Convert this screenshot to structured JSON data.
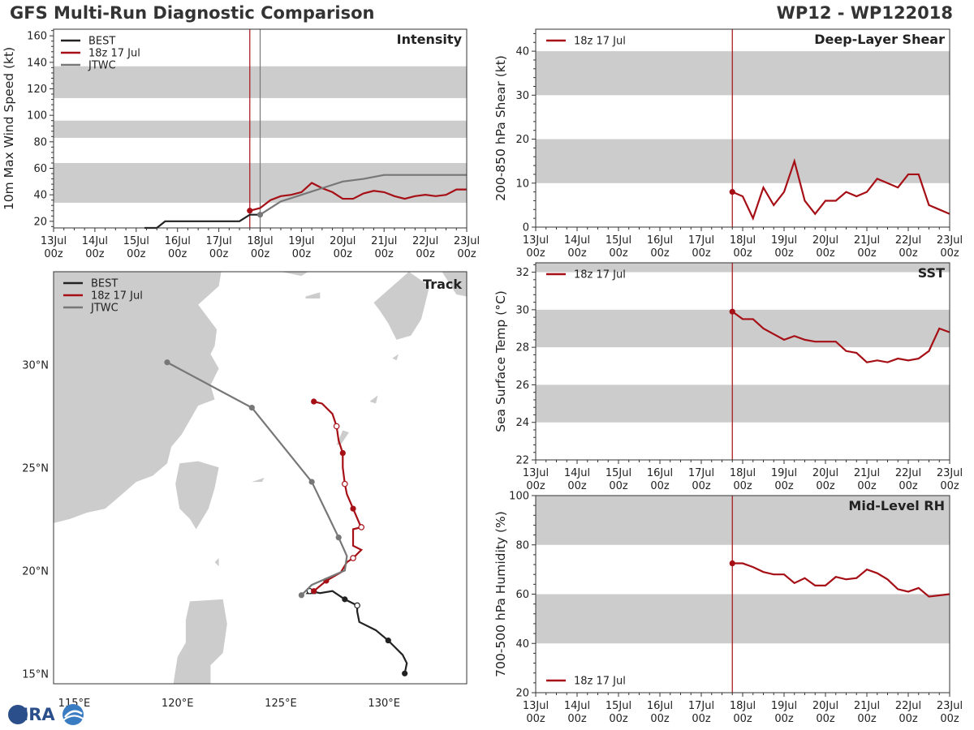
{
  "header": {
    "title": "GFS Multi-Run Diagnostic Comparison",
    "storm_id": "WP12 - WP122018"
  },
  "logo": {
    "text": "CIRA"
  },
  "colors": {
    "best": "#222222",
    "run": "#a50f15",
    "jtwc": "#777777",
    "band": "#cccccc",
    "land": "#cccccc"
  },
  "chart_data": [
    {
      "type": "line",
      "panel": "intensity",
      "title": "Intensity",
      "ylabel": "10m Max Wind Speed (kt)",
      "xlim": [
        0,
        10
      ],
      "ylim": [
        15,
        165
      ],
      "xticks": [
        {
          "v": 0,
          "l1": "13Jul",
          "l2": "00z"
        },
        {
          "v": 1,
          "l1": "14Jul",
          "l2": "00z"
        },
        {
          "v": 2,
          "l1": "15Jul",
          "l2": "00z"
        },
        {
          "v": 3,
          "l1": "16Jul",
          "l2": "00z"
        },
        {
          "v": 4,
          "l1": "17Jul",
          "l2": "00z"
        },
        {
          "v": 5,
          "l1": "18Jul",
          "l2": "00z"
        },
        {
          "v": 6,
          "l1": "19Jul",
          "l2": "00z"
        },
        {
          "v": 7,
          "l1": "20Jul",
          "l2": "00z"
        },
        {
          "v": 8,
          "l1": "21Jul",
          "l2": "00z"
        },
        {
          "v": 9,
          "l1": "22Jul",
          "l2": "00z"
        },
        {
          "v": 10,
          "l1": "23Jul",
          "l2": "00z"
        }
      ],
      "yticks": [
        20,
        40,
        60,
        80,
        100,
        120,
        140,
        160
      ],
      "bands": [
        [
          34,
          64
        ],
        [
          83,
          96
        ],
        [
          113,
          137
        ]
      ],
      "vlines": [
        {
          "x": 4.75,
          "color": "run"
        },
        {
          "x": 5.0,
          "color": "jtwc"
        }
      ],
      "legend": [
        "BEST",
        "18z 17 Jul",
        "JTWC"
      ],
      "series": [
        {
          "name": "BEST",
          "color": "best",
          "x": [
            2.2,
            2.5,
            2.7,
            3.0,
            3.5,
            4.0,
            4.25,
            4.5,
            4.75,
            5.0
          ],
          "y": [
            15,
            15,
            20,
            20,
            20,
            20,
            20,
            20,
            25,
            25
          ]
        },
        {
          "name": "18z 17 Jul",
          "color": "run",
          "start_marker": true,
          "x": [
            4.75,
            5.0,
            5.25,
            5.5,
            5.75,
            6.0,
            6.25,
            6.5,
            6.75,
            7.0,
            7.25,
            7.5,
            7.75,
            8.0,
            8.25,
            8.5,
            8.75,
            9.0,
            9.25,
            9.5,
            9.75,
            10.0
          ],
          "y": [
            28,
            30,
            36,
            39,
            40,
            42,
            49,
            45,
            42,
            37,
            37,
            41,
            43,
            42,
            39,
            37,
            39,
            40,
            39,
            40,
            44,
            44
          ]
        },
        {
          "name": "JTWC",
          "color": "jtwc",
          "start_marker": true,
          "x": [
            5.0,
            5.5,
            6.0,
            6.5,
            7.0,
            7.5,
            8.0,
            9.0,
            10.0
          ],
          "y": [
            25,
            35,
            40,
            45,
            50,
            52,
            55,
            55,
            55
          ]
        }
      ]
    },
    {
      "type": "line",
      "panel": "shear",
      "title": "Deep-Layer Shear",
      "ylabel": "200-850 hPa Shear (kt)",
      "xlim": [
        0,
        10
      ],
      "ylim": [
        0,
        45
      ],
      "yticks": [
        0,
        10,
        20,
        30,
        40
      ],
      "bands": [
        [
          10,
          20
        ],
        [
          30,
          40
        ]
      ],
      "vlines": [
        {
          "x": 4.75,
          "color": "run"
        }
      ],
      "legend": [
        "18z 17 Jul"
      ],
      "series": [
        {
          "name": "18z 17 Jul",
          "color": "run",
          "start_marker": true,
          "x": [
            4.75,
            5.0,
            5.25,
            5.5,
            5.75,
            6.0,
            6.25,
            6.5,
            6.75,
            7.0,
            7.25,
            7.5,
            7.75,
            8.0,
            8.25,
            8.5,
            8.75,
            9.0,
            9.25,
            9.5,
            9.75,
            10.0
          ],
          "y": [
            8,
            7,
            2,
            9,
            5,
            8,
            15,
            6,
            3,
            6,
            6,
            8,
            7,
            8,
            11,
            10,
            9,
            12,
            12,
            5,
            4,
            3
          ]
        }
      ]
    },
    {
      "type": "line",
      "panel": "sst",
      "title": "SST",
      "ylabel": "Sea Surface Temp (°C)",
      "xlim": [
        0,
        10
      ],
      "ylim": [
        22,
        32.5
      ],
      "yticks": [
        22,
        24,
        26,
        28,
        30,
        32
      ],
      "bands": [
        [
          24,
          26
        ],
        [
          28,
          30
        ],
        [
          32,
          32.5
        ]
      ],
      "vlines": [
        {
          "x": 4.75,
          "color": "run"
        }
      ],
      "legend": [
        "18z 17 Jul"
      ],
      "series": [
        {
          "name": "18z 17 Jul",
          "color": "run",
          "start_marker": true,
          "x": [
            4.75,
            5.0,
            5.25,
            5.5,
            5.75,
            6.0,
            6.25,
            6.5,
            6.75,
            7.0,
            7.25,
            7.5,
            7.75,
            8.0,
            8.25,
            8.5,
            8.75,
            9.0,
            9.25,
            9.5,
            9.75,
            10.0
          ],
          "y": [
            29.9,
            29.5,
            29.5,
            29.0,
            28.7,
            28.4,
            28.6,
            28.4,
            28.3,
            28.3,
            28.3,
            27.8,
            27.7,
            27.2,
            27.3,
            27.2,
            27.4,
            27.3,
            27.4,
            27.8,
            29.0,
            28.8
          ]
        }
      ]
    },
    {
      "type": "line",
      "panel": "rh",
      "title": "Mid-Level RH",
      "ylabel": "700-500 hPa Humidity (%)",
      "xlim": [
        0,
        10
      ],
      "ylim": [
        20,
        100
      ],
      "yticks": [
        20,
        40,
        60,
        80,
        100
      ],
      "bands": [
        [
          40,
          60
        ],
        [
          80,
          100
        ]
      ],
      "vlines": [
        {
          "x": 4.75,
          "color": "run"
        }
      ],
      "legend": [
        "18z 17 Jul"
      ],
      "series": [
        {
          "name": "18z 17 Jul",
          "color": "run",
          "start_marker": true,
          "x": [
            4.75,
            5.0,
            5.25,
            5.5,
            5.75,
            6.0,
            6.25,
            6.5,
            6.75,
            7.0,
            7.25,
            7.5,
            7.75,
            8.0,
            8.25,
            8.5,
            8.75,
            9.0,
            9.25,
            9.5,
            9.75,
            10.0
          ],
          "y": [
            72.5,
            72.5,
            71,
            69,
            68,
            68,
            64.5,
            66.5,
            63.5,
            63.5,
            67,
            66,
            66.5,
            70,
            68.5,
            66,
            62,
            61,
            62.5,
            59,
            59.5,
            60
          ]
        }
      ]
    },
    {
      "type": "scatter",
      "panel": "track",
      "title": "Track",
      "xlim": [
        114,
        134
      ],
      "ylim": [
        14.5,
        34.5
      ],
      "xticks": [
        {
          "v": 115,
          "l": "115°E"
        },
        {
          "v": 120,
          "l": "120°E"
        },
        {
          "v": 125,
          "l": "125°E"
        },
        {
          "v": 130,
          "l": "130°E"
        }
      ],
      "yticks": [
        {
          "v": 15,
          "l": "15°N"
        },
        {
          "v": 20,
          "l": "20°N"
        },
        {
          "v": 25,
          "l": "25°N"
        },
        {
          "v": 30,
          "l": "30°N"
        }
      ],
      "legend": [
        "BEST",
        "18z 17 Jul",
        "JTWC"
      ],
      "series": [
        {
          "name": "BEST",
          "color": "best",
          "lon": [
            131.0,
            131.1,
            130.9,
            130.5,
            130.2,
            129.6,
            128.8,
            128.7,
            128.7,
            128.1,
            127.5,
            126.9,
            126.4,
            126.3,
            126.7
          ],
          "lat": [
            15.0,
            15.5,
            15.9,
            16.3,
            16.6,
            17.1,
            17.5,
            18.0,
            18.3,
            18.6,
            19.0,
            18.9,
            19.0,
            18.9,
            18.9
          ],
          "filled": [
            true,
            false,
            false,
            false,
            true,
            false,
            false,
            false,
            false,
            true,
            false,
            false,
            false,
            false,
            false
          ]
        },
        {
          "name": "18z 17 Jul",
          "color": "run",
          "lon": [
            126.6,
            127.2,
            127.9,
            128.2,
            128.5,
            128.9,
            128.5,
            128.5,
            128.9,
            128.8,
            128.5,
            128.2,
            128.1,
            128.0,
            128.0,
            127.8,
            127.7,
            127.5,
            127.0,
            126.6
          ],
          "lat": [
            19.0,
            19.5,
            19.9,
            20.4,
            20.6,
            21.0,
            21.2,
            22.0,
            22.1,
            22.3,
            23.0,
            23.7,
            24.2,
            25.0,
            25.7,
            26.3,
            27.0,
            27.6,
            28.1,
            28.2
          ],
          "filled": [
            true,
            true,
            false,
            false,
            false,
            false,
            false,
            false,
            false,
            false,
            true,
            false,
            false,
            false,
            true,
            false,
            false,
            false,
            false,
            true
          ]
        },
        {
          "name": "JTWC",
          "color": "jtwc",
          "lon": [
            126.0,
            126.5,
            128.1,
            128.2,
            127.8,
            126.5,
            123.6,
            119.5
          ],
          "lat": [
            18.8,
            19.3,
            20.0,
            20.7,
            21.6,
            24.3,
            27.9,
            30.1
          ],
          "filled": [
            true,
            false,
            false,
            false,
            true,
            true,
            true,
            true
          ]
        }
      ]
    }
  ]
}
